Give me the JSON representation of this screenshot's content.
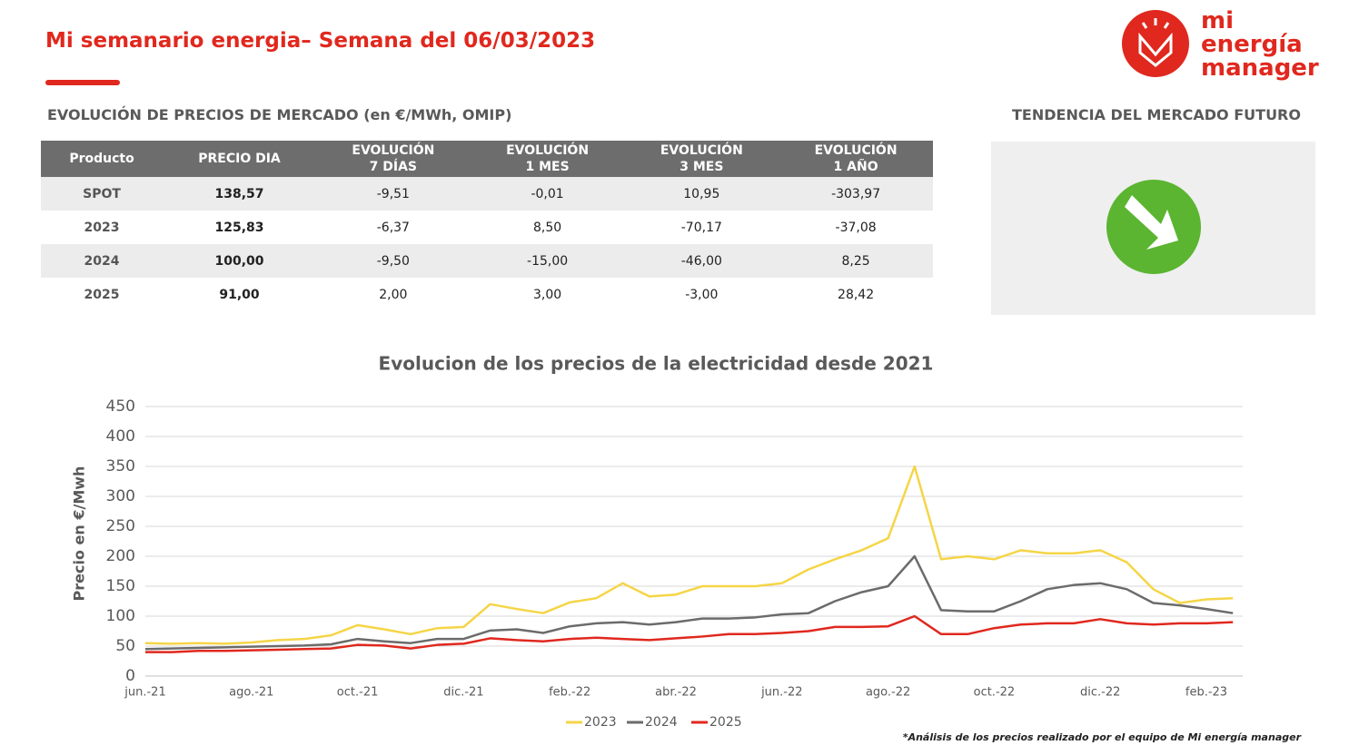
{
  "header": {
    "title": "Mi semanario energia– Semana del 06/03/2023"
  },
  "logo": {
    "lines": [
      "mi",
      "energía",
      "manager"
    ]
  },
  "table": {
    "title": "EVOLUCIÓN DE PRECIOS DE MERCADO (en €/MWh, OMIP)",
    "columns": [
      "Producto",
      "PRECIO DIA",
      "EVOLUCIÓN\n7 DÍAS",
      "EVOLUCIÓN\n1 MES",
      "EVOLUCIÓN\n3 MES",
      "EVOLUCIÓN\n1 AÑO"
    ],
    "rows": [
      [
        "SPOT",
        "138,57",
        "-9,51",
        "-0,01",
        "10,95",
        "-303,97"
      ],
      [
        "2023",
        "125,83",
        "-6,37",
        "8,50",
        "-70,17",
        "-37,08"
      ],
      [
        "2024",
        "100,00",
        "-9,50",
        "-15,00",
        "-46,00",
        "8,25"
      ],
      [
        "2025",
        "91,00",
        "2,00",
        "3,00",
        "-3,00",
        "28,42"
      ]
    ]
  },
  "trend": {
    "title": "TENDENCIA DEL MERCADO FUTURO"
  },
  "chart_data": {
    "type": "line",
    "title": "Evolucion de los precios de la electricidad desde 2021",
    "y_label": "Precio en €/Mwh",
    "categories": [
      "jun.-21",
      null,
      null,
      null,
      "ago.-21",
      null,
      null,
      null,
      "oct.-21",
      null,
      null,
      null,
      "dic.-21",
      null,
      null,
      null,
      "feb.-22",
      null,
      null,
      null,
      "abr.-22",
      null,
      null,
      null,
      "jun.-22",
      null,
      null,
      null,
      "ago.-22",
      null,
      null,
      null,
      "oct.-22",
      null,
      null,
      null,
      "dic.-22",
      null,
      null,
      null,
      "feb.-23",
      null
    ],
    "series": [
      {
        "name": "2023",
        "color": "#f5d547",
        "values": [
          55,
          54,
          55,
          54,
          56,
          60,
          62,
          68,
          85,
          78,
          70,
          80,
          82,
          120,
          112,
          105,
          123,
          130,
          155,
          133,
          136,
          150,
          150,
          150,
          155,
          178,
          195,
          210,
          230,
          350,
          195,
          200,
          195,
          210,
          205,
          205,
          210,
          190,
          145,
          122,
          128,
          130
        ]
      },
      {
        "name": "2024",
        "color": "#6b6b6b",
        "values": [
          45,
          46,
          47,
          48,
          49,
          50,
          51,
          53,
          62,
          58,
          55,
          62,
          62,
          76,
          78,
          72,
          83,
          88,
          90,
          86,
          90,
          96,
          96,
          98,
          103,
          105,
          125,
          140,
          150,
          200,
          110,
          108,
          108,
          125,
          145,
          152,
          155,
          145,
          122,
          118,
          112,
          105
        ]
      },
      {
        "name": "2025",
        "color": "#e0281e",
        "values": [
          40,
          40,
          42,
          42,
          43,
          44,
          45,
          46,
          52,
          51,
          46,
          52,
          54,
          63,
          60,
          58,
          62,
          64,
          62,
          60,
          63,
          66,
          70,
          70,
          72,
          75,
          82,
          82,
          83,
          100,
          70,
          70,
          80,
          86,
          88,
          88,
          95,
          88,
          86,
          88,
          88,
          90
        ]
      }
    ],
    "ylim": [
      0,
      450
    ],
    "yticks": [
      0,
      50,
      100,
      150,
      200,
      250,
      300,
      350,
      400,
      450
    ],
    "grid": true,
    "legend": "bottom"
  },
  "footnote": "*Análisis de los precios realizado por el equipo de Mi energía manager"
}
